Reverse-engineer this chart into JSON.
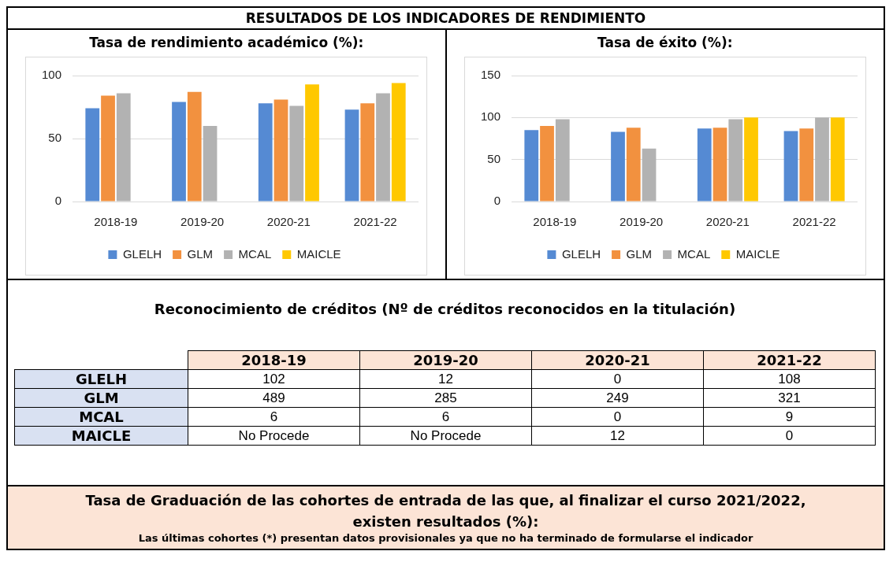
{
  "chart_data": [
    {
      "type": "other",
      "title": "RESULTADOS DE LOS INDICADORES DE RENDIMIENTO"
    },
    {
      "type": "bar",
      "title": "Tasa de rendimiento académico (%):",
      "categories": [
        "2018-19",
        "2019-20",
        "2020-21",
        "2021-22"
      ],
      "series": [
        {
          "name": "GLELH",
          "color": "#558ad3",
          "values": [
            74,
            79,
            78,
            73
          ]
        },
        {
          "name": "GLM",
          "color": "#f2913f",
          "values": [
            84,
            87,
            81,
            78
          ]
        },
        {
          "name": "MCAL",
          "color": "#b2b2b2",
          "values": [
            86,
            60,
            76,
            86
          ]
        },
        {
          "name": "MAICLE",
          "color": "#ffc800",
          "values": [
            null,
            null,
            93,
            94
          ]
        }
      ],
      "ylim": [
        0,
        100
      ],
      "yticks": [
        0,
        50,
        100
      ],
      "grid": "y",
      "legend": "bottom"
    },
    {
      "type": "bar",
      "title": "Tasa de éxito (%):",
      "categories": [
        "2018-19",
        "2019-20",
        "2020-21",
        "2021-22"
      ],
      "series": [
        {
          "name": "GLELH",
          "color": "#558ad3",
          "values": [
            85,
            83,
            87,
            84
          ]
        },
        {
          "name": "GLM",
          "color": "#f2913f",
          "values": [
            90,
            88,
            88,
            87
          ]
        },
        {
          "name": "MCAL",
          "color": "#b2b2b2",
          "values": [
            98,
            63,
            98,
            100
          ]
        },
        {
          "name": "MAICLE",
          "color": "#ffc800",
          "values": [
            null,
            null,
            100,
            100
          ]
        }
      ],
      "ylim": [
        0,
        150
      ],
      "yticks": [
        0,
        50,
        100,
        150
      ],
      "grid": "y",
      "legend": "bottom"
    },
    {
      "type": "other",
      "title": "Reconocimiento de créditos (Nº de créditos reconocidos en la titulación)",
      "categories": [
        "2018-19",
        "2019-20",
        "2020-21",
        "2021-22"
      ],
      "y_categories": [
        "GLELH",
        "GLM",
        "MCAL",
        "MAICLE"
      ],
      "cell_labels": [
        [
          "102",
          "12",
          "0",
          "108"
        ],
        [
          "489",
          "285",
          "249",
          "321"
        ],
        [
          "6",
          "6",
          "0",
          "9"
        ],
        [
          "No Procede",
          "No Procede",
          "12",
          "0"
        ]
      ]
    },
    {
      "type": "other",
      "title": "Tasa de Graduación de las cohortes de entrada de las que, al finalizar el curso 2021/2022, existen resultados (%):",
      "subtitle": "Las últimas cohortes (*) presentan datos provisionales ya que no ha terminado de formularse el indicador"
    }
  ]
}
